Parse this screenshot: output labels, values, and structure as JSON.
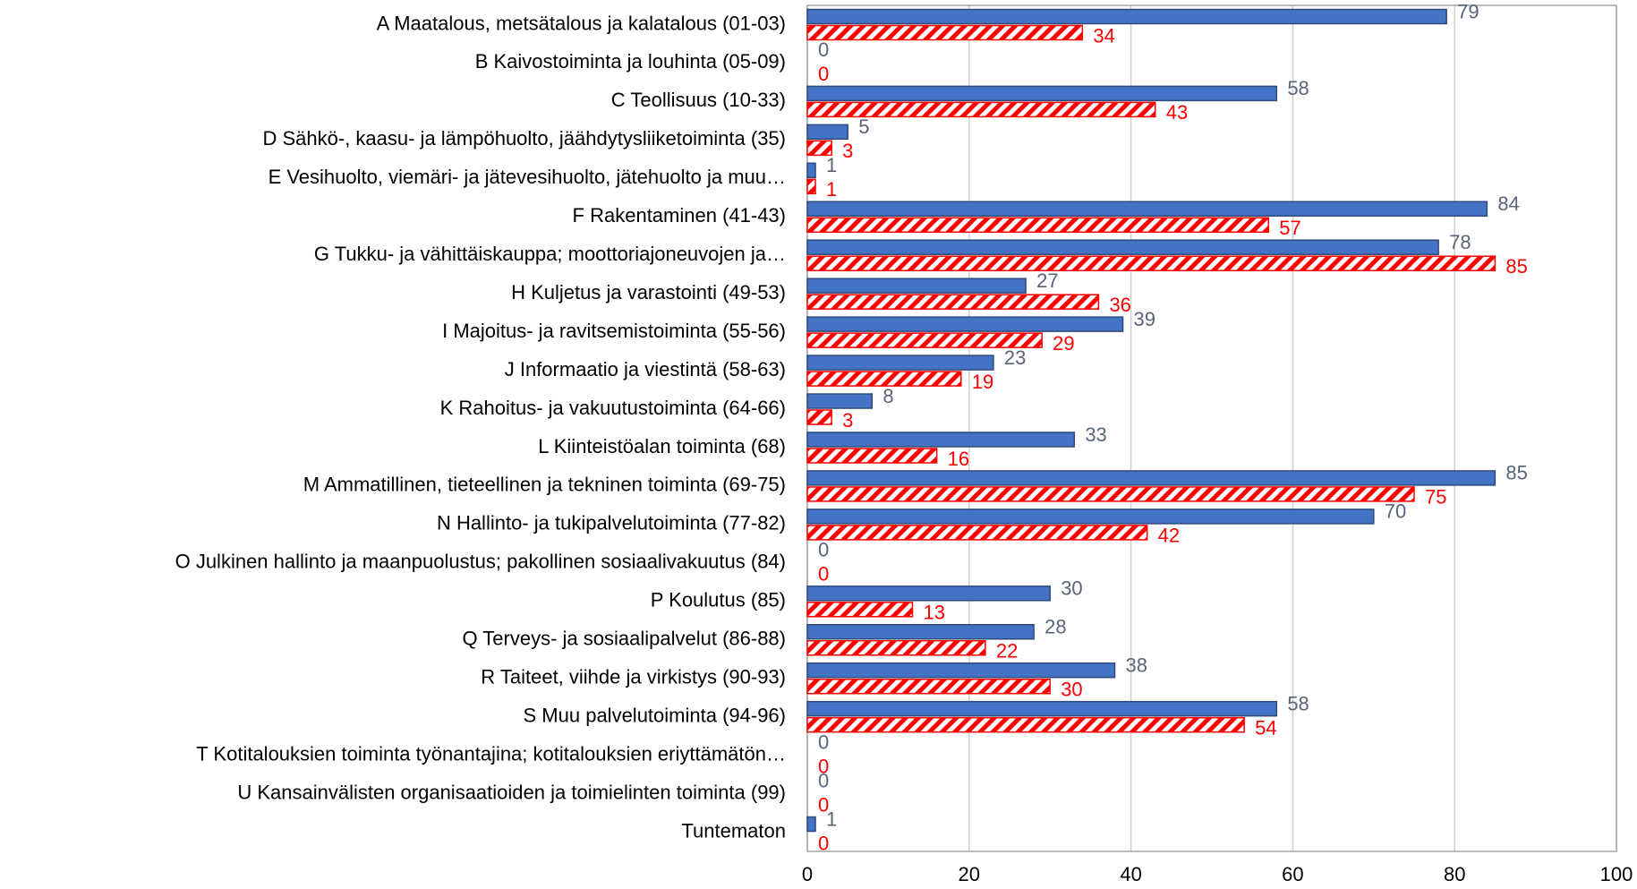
{
  "chart_data": {
    "type": "bar",
    "orientation": "horizontal",
    "categories": [
      "A Maatalous, metsätalous ja kalatalous (01-03)",
      "B Kaivostoiminta ja louhinta (05-09)",
      "C Teollisuus (10-33)",
      "D Sähkö-, kaasu- ja lämpöhuolto, jäähdytysliiketoiminta (35)",
      "E Vesihuolto, viemäri- ja jätevesihuolto, jätehuolto ja muu…",
      "F Rakentaminen (41-43)",
      "G Tukku- ja vähittäiskauppa; moottoriajoneuvojen ja…",
      "H Kuljetus ja varastointi (49-53)",
      "I Majoitus- ja ravitsemistoiminta (55-56)",
      "J Informaatio ja viestintä (58-63)",
      "K Rahoitus- ja vakuutustoiminta (64-66)",
      "L Kiinteistöalan toiminta (68)",
      "M Ammatillinen, tieteellinen ja tekninen toiminta (69-75)",
      "N Hallinto- ja tukipalvelutoiminta (77-82)",
      "O Julkinen hallinto ja maanpuolustus; pakollinen sosiaalivakuutus (84)",
      "P Koulutus (85)",
      "Q Terveys- ja sosiaalipalvelut (86-88)",
      "R Taiteet, viihde ja virkistys (90-93)",
      "S Muu palvelutoiminta (94-96)",
      "T Kotitalouksien toiminta työnantajina; kotitalouksien eriyttämätön…",
      "U Kansainvälisten organisaatioiden ja toimielinten toiminta (99)",
      "Tuntematon"
    ],
    "series": [
      {
        "color": "#4472c4",
        "values": [
          79,
          0,
          58,
          5,
          1,
          84,
          78,
          27,
          39,
          23,
          8,
          33,
          85,
          70,
          0,
          30,
          28,
          38,
          58,
          0,
          0,
          1
        ]
      },
      {
        "color": "#ff0000",
        "hatch": true,
        "values": [
          34,
          0,
          43,
          3,
          1,
          57,
          85,
          36,
          29,
          19,
          3,
          16,
          75,
          42,
          0,
          13,
          22,
          30,
          54,
          0,
          0,
          0
        ]
      }
    ],
    "xlim": [
      0,
      100
    ],
    "xticks": [
      0,
      20,
      40,
      60,
      80,
      100
    ],
    "grid": true
  }
}
